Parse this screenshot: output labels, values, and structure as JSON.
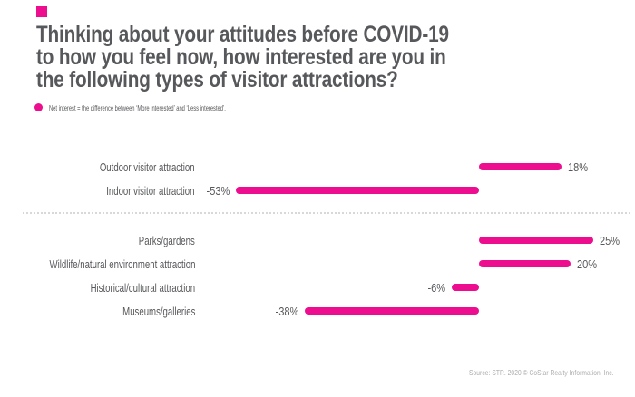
{
  "brand": {
    "accent_color": "#EC0E8E"
  },
  "header": {
    "title_lines": [
      "Thinking about your attitudes before COVID-19",
      "to how you feel now, how interested are you in",
      "the following types of visitor attractions?"
    ],
    "legend_text": "Net interest = the difference between ‘More interested’ and ‘Less interested’."
  },
  "chart_data": {
    "type": "bar",
    "orientation": "horizontal",
    "unit": "%",
    "xlim": [
      -53,
      25
    ],
    "baseline_value": 0,
    "bar_color": "#EC0E8E",
    "legend": "Net interest = the difference between ‘More interested’ and ‘Less interested’.",
    "groups": [
      {
        "rows": [
          {
            "label": "Outdoor visitor attraction",
            "value": 18,
            "value_label": "18%"
          },
          {
            "label": "Indoor visitor attraction",
            "value": -53,
            "value_label": "-53%"
          }
        ]
      },
      {
        "rows": [
          {
            "label": "Parks/gardens",
            "value": 25,
            "value_label": "25%"
          },
          {
            "label": "Wildlife/natural environment attraction",
            "value": 20,
            "value_label": "20%"
          },
          {
            "label": "Historical/cultural attraction",
            "value": -6,
            "value_label": "-6%"
          },
          {
            "label": "Museums/galleries",
            "value": -38,
            "value_label": "-38%"
          }
        ]
      }
    ]
  },
  "footer": {
    "source": "Source: STR. 2020 © CoStar Realty Information, Inc."
  }
}
